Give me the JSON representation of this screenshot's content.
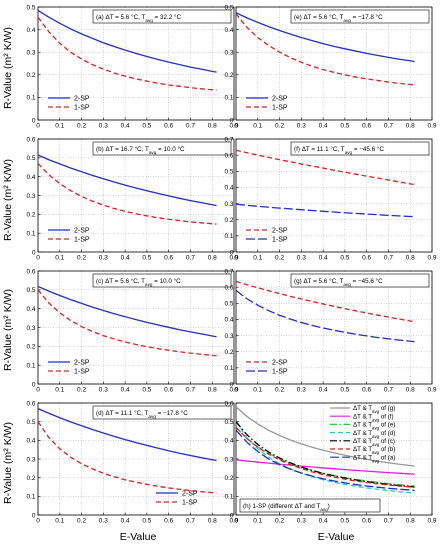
{
  "figure": {
    "ylabel": "R-Value (m² K/W)",
    "xlabel": "E-Value"
  },
  "chart_data": [
    {
      "type": "line",
      "panel": "a",
      "annotation": {
        "pre": "(a) ΔT = 5.6 °C, T",
        "sub": "avg",
        "post": " = 32.2 °C"
      },
      "xlim": [
        0,
        0.9
      ],
      "ylim": [
        0,
        0.5
      ],
      "ytick_step": 0.1,
      "x": [
        0.0,
        0.05,
        0.1,
        0.15,
        0.2,
        0.25,
        0.3,
        0.35,
        0.4,
        0.45,
        0.5,
        0.55,
        0.6,
        0.65,
        0.7,
        0.75,
        0.8,
        0.82
      ],
      "series": [
        {
          "name": "2-SP",
          "color": "#1f2fd0",
          "dash": "solid",
          "values": [
            0.485,
            0.455,
            0.428,
            0.403,
            0.381,
            0.361,
            0.342,
            0.325,
            0.309,
            0.295,
            0.281,
            0.268,
            0.256,
            0.245,
            0.234,
            0.225,
            0.215,
            0.212
          ]
        },
        {
          "name": "1-SP",
          "color": "#e02020",
          "dash": "dashed",
          "values": [
            0.455,
            0.39,
            0.34,
            0.3,
            0.27,
            0.245,
            0.225,
            0.208,
            0.194,
            0.182,
            0.172,
            0.163,
            0.155,
            0.149,
            0.143,
            0.138,
            0.134,
            0.132
          ]
        }
      ],
      "legend": "bottom-left"
    },
    {
      "type": "line",
      "panel": "e",
      "annotation": {
        "pre": "(e) ΔT = 5.6 °C, T",
        "sub": "avg",
        "post": " = −17.8 °C"
      },
      "xlim": [
        0,
        0.9
      ],
      "ylim": [
        0,
        0.5
      ],
      "ytick_step": 0.1,
      "x": [
        0.0,
        0.05,
        0.1,
        0.15,
        0.2,
        0.25,
        0.3,
        0.35,
        0.4,
        0.45,
        0.5,
        0.55,
        0.6,
        0.65,
        0.7,
        0.75,
        0.8,
        0.82
      ],
      "series": [
        {
          "name": "2-SP",
          "color": "#1f2fd0",
          "dash": "solid",
          "values": [
            0.475,
            0.452,
            0.432,
            0.413,
            0.396,
            0.38,
            0.365,
            0.351,
            0.338,
            0.326,
            0.315,
            0.305,
            0.295,
            0.286,
            0.277,
            0.269,
            0.262,
            0.259
          ]
        },
        {
          "name": "1-SP",
          "color": "#e02020",
          "dash": "dashed",
          "values": [
            0.47,
            0.41,
            0.365,
            0.33,
            0.3,
            0.276,
            0.255,
            0.238,
            0.223,
            0.211,
            0.2,
            0.19,
            0.182,
            0.175,
            0.168,
            0.162,
            0.157,
            0.155
          ]
        }
      ],
      "legend": "bottom-left"
    },
    {
      "type": "line",
      "panel": "b",
      "annotation": {
        "pre": "(b) ΔT = 16.7 °C, T",
        "sub": "avg",
        "post": " = 10.0 °C"
      },
      "xlim": [
        0,
        0.9
      ],
      "ylim": [
        0,
        0.6
      ],
      "ytick_step": 0.1,
      "x": [
        0.0,
        0.05,
        0.1,
        0.15,
        0.2,
        0.25,
        0.3,
        0.35,
        0.4,
        0.45,
        0.5,
        0.55,
        0.6,
        0.65,
        0.7,
        0.75,
        0.8,
        0.82
      ],
      "series": [
        {
          "name": "2-SP",
          "color": "#1f2fd0",
          "dash": "solid",
          "values": [
            0.515,
            0.49,
            0.468,
            0.446,
            0.426,
            0.407,
            0.389,
            0.372,
            0.355,
            0.34,
            0.325,
            0.311,
            0.298,
            0.285,
            0.273,
            0.262,
            0.251,
            0.247
          ]
        },
        {
          "name": "1-SP",
          "color": "#e02020",
          "dash": "dashed",
          "values": [
            0.47,
            0.41,
            0.363,
            0.326,
            0.295,
            0.27,
            0.249,
            0.231,
            0.216,
            0.203,
            0.192,
            0.182,
            0.174,
            0.167,
            0.16,
            0.155,
            0.15,
            0.148
          ]
        }
      ],
      "legend": "bottom-left"
    },
    {
      "type": "line",
      "panel": "f",
      "annotation": {
        "pre": "(f) ΔT = 11.1 °C, T",
        "sub": "avg",
        "post": " = −45.6 °C"
      },
      "xlim": [
        0,
        0.9
      ],
      "ylim": [
        0,
        0.7
      ],
      "ytick_step": 0.1,
      "x": [
        0.0,
        0.1,
        0.2,
        0.3,
        0.4,
        0.5,
        0.6,
        0.7,
        0.8,
        0.82
      ],
      "series": [
        {
          "name": "2-SP",
          "color": "#e02020",
          "dash": "dashed",
          "values": [
            0.63,
            0.6,
            0.572,
            0.545,
            0.52,
            0.494,
            0.47,
            0.446,
            0.422,
            0.418
          ]
        },
        {
          "name": "1-SP",
          "color": "#1f2fd0",
          "dash": "longdash",
          "values": [
            0.296,
            0.283,
            0.272,
            0.262,
            0.252,
            0.243,
            0.235,
            0.227,
            0.22,
            0.219
          ]
        }
      ],
      "legend": "bottom-left"
    },
    {
      "type": "line",
      "panel": "c",
      "annotation": {
        "pre": "(c) ΔT = 5.6 °C, T",
        "sub": "avg",
        "post": " = 10.0 °C"
      },
      "xlim": [
        0,
        0.9
      ],
      "ylim": [
        0,
        0.6
      ],
      "ytick_step": 0.1,
      "x": [
        0.0,
        0.05,
        0.1,
        0.15,
        0.2,
        0.25,
        0.3,
        0.35,
        0.4,
        0.45,
        0.5,
        0.55,
        0.6,
        0.65,
        0.7,
        0.75,
        0.8,
        0.82
      ],
      "series": [
        {
          "name": "2-SP",
          "color": "#1f2fd0",
          "dash": "solid",
          "values": [
            0.518,
            0.493,
            0.47,
            0.448,
            0.428,
            0.408,
            0.39,
            0.373,
            0.357,
            0.342,
            0.327,
            0.314,
            0.301,
            0.288,
            0.277,
            0.266,
            0.255,
            0.251
          ]
        },
        {
          "name": "1-SP",
          "color": "#e02020",
          "dash": "dashed",
          "values": [
            0.5,
            0.43,
            0.378,
            0.337,
            0.305,
            0.279,
            0.257,
            0.239,
            0.223,
            0.21,
            0.198,
            0.188,
            0.179,
            0.171,
            0.164,
            0.158,
            0.152,
            0.15
          ]
        }
      ],
      "legend": "bottom-left"
    },
    {
      "type": "line",
      "panel": "g",
      "annotation": {
        "pre": "(g) ΔT = 5.6 °C, T",
        "sub": "avg",
        "post": " = −45.6 °C"
      },
      "xlim": [
        0,
        0.9
      ],
      "ylim": [
        0,
        0.7
      ],
      "ytick_step": 0.1,
      "x": [
        0.0,
        0.05,
        0.1,
        0.15,
        0.2,
        0.25,
        0.3,
        0.35,
        0.4,
        0.45,
        0.5,
        0.55,
        0.6,
        0.65,
        0.7,
        0.75,
        0.8,
        0.82
      ],
      "series": [
        {
          "name": "2-SP",
          "color": "#e02020",
          "dash": "dashed",
          "values": [
            0.635,
            0.615,
            0.596,
            0.578,
            0.56,
            0.543,
            0.527,
            0.511,
            0.496,
            0.481,
            0.467,
            0.453,
            0.44,
            0.427,
            0.414,
            0.402,
            0.39,
            0.386
          ]
        },
        {
          "name": "1-SP",
          "color": "#1f2fd0",
          "dash": "longdash",
          "values": [
            0.58,
            0.528,
            0.488,
            0.454,
            0.426,
            0.402,
            0.381,
            0.363,
            0.347,
            0.333,
            0.32,
            0.308,
            0.298,
            0.288,
            0.28,
            0.272,
            0.265,
            0.262
          ]
        }
      ],
      "legend": "bottom-left"
    },
    {
      "type": "line",
      "panel": "d",
      "annotation": {
        "pre": "(d) ΔT = 11.1 °C, T",
        "sub": "avg",
        "post": " = −17.8 °C"
      },
      "xlim": [
        0,
        0.9
      ],
      "ylim": [
        0,
        0.6
      ],
      "ytick_step": 0.1,
      "x": [
        0.0,
        0.05,
        0.1,
        0.15,
        0.2,
        0.25,
        0.3,
        0.35,
        0.4,
        0.45,
        0.5,
        0.55,
        0.6,
        0.65,
        0.7,
        0.75,
        0.8,
        0.82
      ],
      "series": [
        {
          "name": "2-SP",
          "color": "#1f2fd0",
          "dash": "solid",
          "values": [
            0.57,
            0.545,
            0.521,
            0.499,
            0.478,
            0.458,
            0.439,
            0.421,
            0.404,
            0.388,
            0.373,
            0.358,
            0.344,
            0.331,
            0.319,
            0.307,
            0.296,
            0.292
          ]
        },
        {
          "name": "1-SP",
          "color": "#e02020",
          "dash": "dashed",
          "values": [
            0.5,
            0.415,
            0.355,
            0.31,
            0.275,
            0.247,
            0.224,
            0.205,
            0.189,
            0.176,
            0.164,
            0.154,
            0.145,
            0.138,
            0.131,
            0.125,
            0.12,
            0.118
          ]
        }
      ],
      "legend": "bottom-right"
    },
    {
      "type": "line",
      "panel": "h",
      "annotation": {
        "pre": "(h) 1-SP (different  ΔT and T",
        "sub": "avg",
        "post": ")"
      },
      "xlim": [
        0,
        0.9
      ],
      "ylim": [
        0,
        0.6
      ],
      "ytick_step": 0.1,
      "x": [
        0.0,
        0.05,
        0.1,
        0.15,
        0.2,
        0.25,
        0.3,
        0.35,
        0.4,
        0.45,
        0.5,
        0.55,
        0.6,
        0.65,
        0.7,
        0.75,
        0.8,
        0.82
      ],
      "series": [
        {
          "name": "ΔT & T|avg| of (g)",
          "color": "#999999",
          "dash": "solid",
          "values": [
            0.58,
            0.528,
            0.488,
            0.454,
            0.426,
            0.402,
            0.381,
            0.363,
            0.347,
            0.333,
            0.32,
            0.308,
            0.298,
            0.288,
            0.28,
            0.272,
            0.265,
            0.262
          ]
        },
        {
          "name": "ΔT & T|avg| of (f)",
          "color": "#e020e0",
          "dash": "solid",
          "values": [
            0.296,
            0.289,
            0.283,
            0.278,
            0.272,
            0.267,
            0.262,
            0.257,
            0.252,
            0.248,
            0.243,
            0.239,
            0.235,
            0.231,
            0.227,
            0.224,
            0.22,
            0.219
          ]
        },
        {
          "name": "ΔT & T|avg| of (e)",
          "color": "#22d02a",
          "dash": "dashdot",
          "values": [
            0.47,
            0.41,
            0.365,
            0.33,
            0.3,
            0.276,
            0.255,
            0.238,
            0.223,
            0.211,
            0.2,
            0.19,
            0.182,
            0.175,
            0.168,
            0.162,
            0.157,
            0.155
          ]
        },
        {
          "name": "ΔT & T|avg| of (d)",
          "color": "#22d0d0",
          "dash": "dashed",
          "values": [
            0.5,
            0.415,
            0.355,
            0.31,
            0.275,
            0.247,
            0.224,
            0.205,
            0.189,
            0.176,
            0.164,
            0.154,
            0.145,
            0.138,
            0.131,
            0.125,
            0.12,
            0.118
          ]
        },
        {
          "name": "ΔT & T|avg| of (c)",
          "color": "#000000",
          "dash": "dashdot",
          "values": [
            0.5,
            0.43,
            0.378,
            0.337,
            0.305,
            0.279,
            0.257,
            0.239,
            0.223,
            0.21,
            0.198,
            0.188,
            0.179,
            0.171,
            0.164,
            0.158,
            0.152,
            0.15
          ]
        },
        {
          "name": "ΔT & T|avg| of (b)",
          "color": "#e02020",
          "dash": "dashed",
          "values": [
            0.47,
            0.41,
            0.363,
            0.326,
            0.295,
            0.27,
            0.249,
            0.231,
            0.216,
            0.203,
            0.192,
            0.182,
            0.174,
            0.167,
            0.16,
            0.155,
            0.15,
            0.148
          ]
        },
        {
          "name": "ΔT & T|avg| of (a)",
          "color": "#1f2fd0",
          "dash": "longdash",
          "values": [
            0.455,
            0.39,
            0.34,
            0.3,
            0.27,
            0.245,
            0.225,
            0.208,
            0.194,
            0.182,
            0.172,
            0.163,
            0.155,
            0.149,
            0.143,
            0.138,
            0.134,
            0.132
          ]
        }
      ],
      "legend": "top-right"
    }
  ]
}
